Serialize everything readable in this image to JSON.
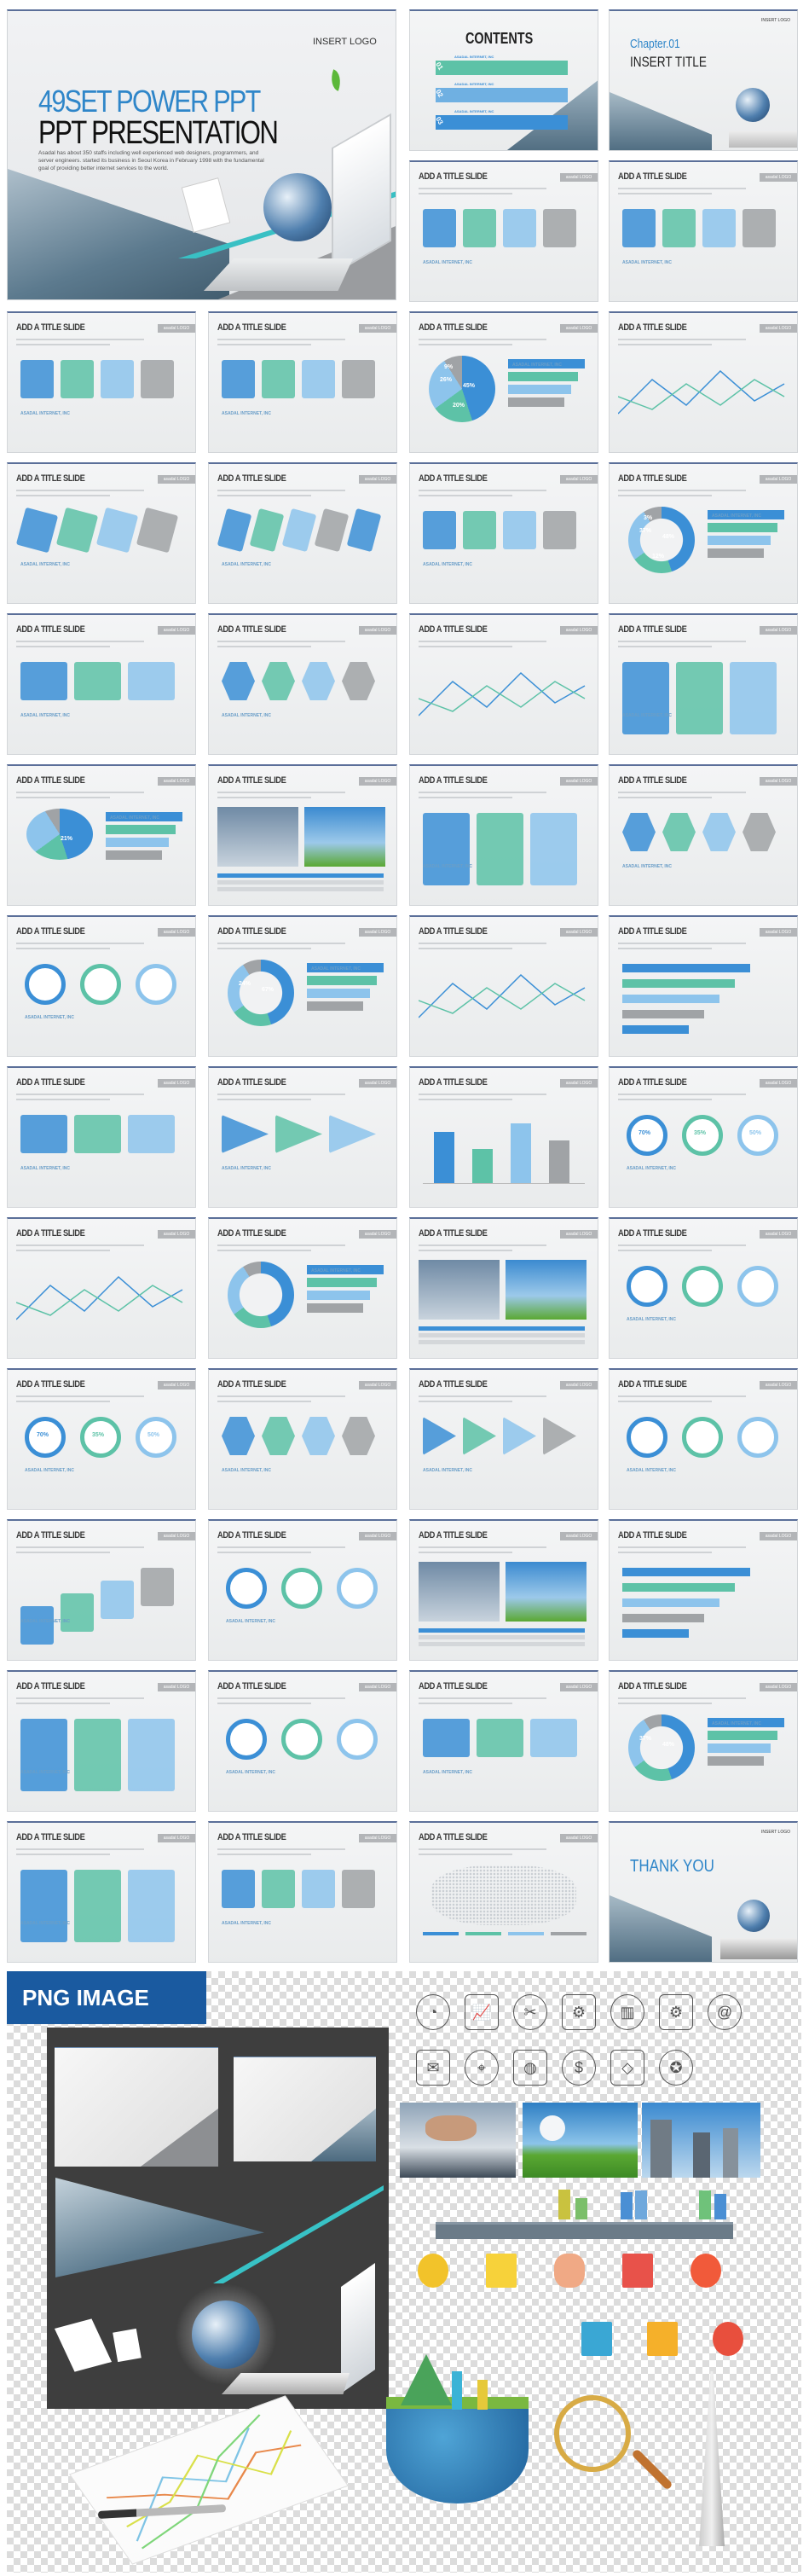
{
  "hero": {
    "logo": "INSERT LOGO",
    "title_line1": "49SET POWER PPT",
    "title_line2": "PPT PRESENTATION",
    "description": "Asadal has about 350 staffs including well experienced web designers, programmers, and server engineers. started its business in Seoul Korea in February 1998 with the fundamental goal of providing better internet services to the world."
  },
  "contents_slide": {
    "title": "CONTENTS",
    "items": [
      {
        "number": "01",
        "label": "ASADAL INTERNET, INC"
      },
      {
        "number": "02",
        "label": "ASADAL INTERNET, INC"
      },
      {
        "number": "03",
        "label": "ASADAL INTERNET, INC"
      }
    ]
  },
  "chapter_slide": {
    "logo": "INSERT LOGO",
    "chapter": "Chapter.01",
    "title": "INSERT TITLE"
  },
  "common": {
    "slide_title": "ADD A TITLE SLIDE",
    "slide_logo": "asadal LOGO",
    "company": "ASADAL INTERNET, INC"
  },
  "slides": [
    {
      "kind": "timeline"
    },
    {
      "kind": "org"
    },
    {
      "kind": "radar"
    },
    {
      "kind": "steps"
    },
    {
      "kind": "piebars",
      "labels": [
        "45%",
        "26%",
        "20%",
        "9%"
      ]
    },
    {
      "kind": "infinity"
    },
    {
      "kind": "pieces"
    },
    {
      "kind": "steps5"
    },
    {
      "kind": "arrowup"
    },
    {
      "kind": "donut",
      "labels": [
        "48%",
        "37%",
        "12%",
        "3%"
      ]
    },
    {
      "kind": "arrows"
    },
    {
      "kind": "hexlist"
    },
    {
      "kind": "line"
    },
    {
      "kind": "cards"
    },
    {
      "kind": "pie3d",
      "labels": [
        "21%"
      ]
    },
    {
      "kind": "photo"
    },
    {
      "kind": "cards"
    },
    {
      "kind": "hexagon"
    },
    {
      "kind": "circles"
    },
    {
      "kind": "bigdonut",
      "labels": [
        "67%",
        "24%"
      ]
    },
    {
      "kind": "line"
    },
    {
      "kind": "hbars"
    },
    {
      "kind": "arrows"
    },
    {
      "kind": "triangles"
    },
    {
      "kind": "bars"
    },
    {
      "kind": "gauges",
      "labels": [
        "70%",
        "35%",
        "50%"
      ]
    },
    {
      "kind": "line"
    },
    {
      "kind": "donuttable"
    },
    {
      "kind": "photos"
    },
    {
      "kind": "flowers"
    },
    {
      "kind": "gauges",
      "labels": [
        "70%",
        "35%",
        "50%"
      ]
    },
    {
      "kind": "hexlist"
    },
    {
      "kind": "pyramid"
    },
    {
      "kind": "circles"
    },
    {
      "kind": "stairs"
    },
    {
      "kind": "circlestable"
    },
    {
      "kind": "photos"
    },
    {
      "kind": "hbars"
    },
    {
      "kind": "cards"
    },
    {
      "kind": "circles"
    },
    {
      "kind": "arrows"
    },
    {
      "kind": "donut",
      "labels": [
        "48%",
        "37%"
      ]
    },
    {
      "kind": "cards"
    },
    {
      "kind": "cross"
    },
    {
      "kind": "worldmap"
    }
  ],
  "thankyou_slide": {
    "logo": "INSERT LOGO",
    "title": "THANK YOU"
  },
  "png_section": {
    "banner": "PNG IMAGE",
    "outline_icons": [
      "pie-chart-icon",
      "growth-chart-icon",
      "tools-icon",
      "browser-gear-icon",
      "battery-icon",
      "gear-icon",
      "email-icon",
      "monitor-mail-icon",
      "location-pin-icon",
      "piggy-bank-icon",
      "money-bag-icon",
      "diamond-icon",
      "award-icon"
    ],
    "color_icons": [
      "coin-icon",
      "document-icon",
      "handshake-icon",
      "bar-chart-icon",
      "gear-dollar-icon",
      "profile-card-icon",
      "rising-chart-icon",
      "pie-chart-icon"
    ]
  },
  "colors": {
    "teal": "#5dc2a7",
    "blue": "#3b8fd6",
    "light_blue": "#8dc4ec",
    "gray": "#a0a3a6",
    "title_blue": "#2f86c9",
    "banner": "#1a5aa0",
    "panel": "#3e3e3e"
  }
}
